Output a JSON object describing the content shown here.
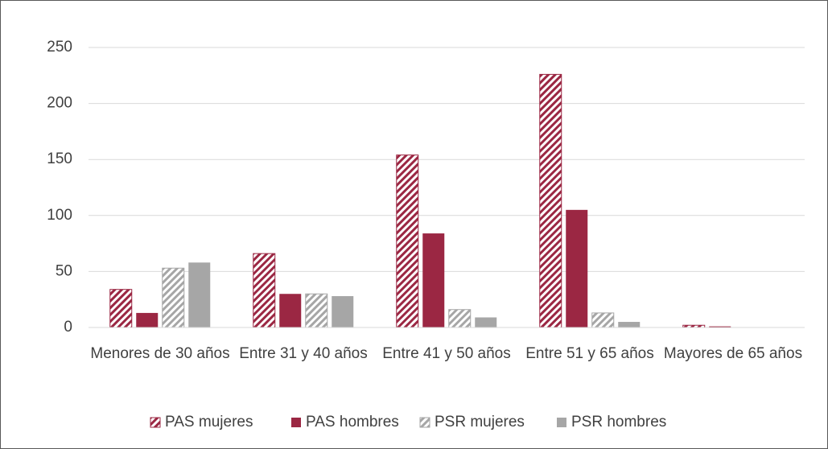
{
  "chart_data": {
    "type": "bar",
    "categories": [
      "Menores de 30 años",
      "Entre 31 y 40 años",
      "Entre 41 y 50 años",
      "Entre 51 y 65 años",
      "Mayores de 65 años"
    ],
    "series": [
      {
        "name": "PAS mujeres",
        "color": "#9b2743",
        "hatch": true,
        "values": [
          34,
          66,
          154,
          226,
          2
        ]
      },
      {
        "name": "PAS hombres",
        "color": "#9b2743",
        "hatch": false,
        "values": [
          13,
          30,
          84,
          105,
          1
        ]
      },
      {
        "name": "PSR mujeres",
        "color": "#a6a6a6",
        "hatch": true,
        "values": [
          53,
          30,
          16,
          13,
          0
        ]
      },
      {
        "name": "PSR hombres",
        "color": "#a6a6a6",
        "hatch": false,
        "values": [
          58,
          28,
          9,
          5,
          0
        ]
      }
    ],
    "ylim": [
      0,
      250
    ],
    "yticks": [
      0,
      50,
      100,
      150,
      200,
      250
    ],
    "grid": true,
    "legend": "bottom"
  }
}
